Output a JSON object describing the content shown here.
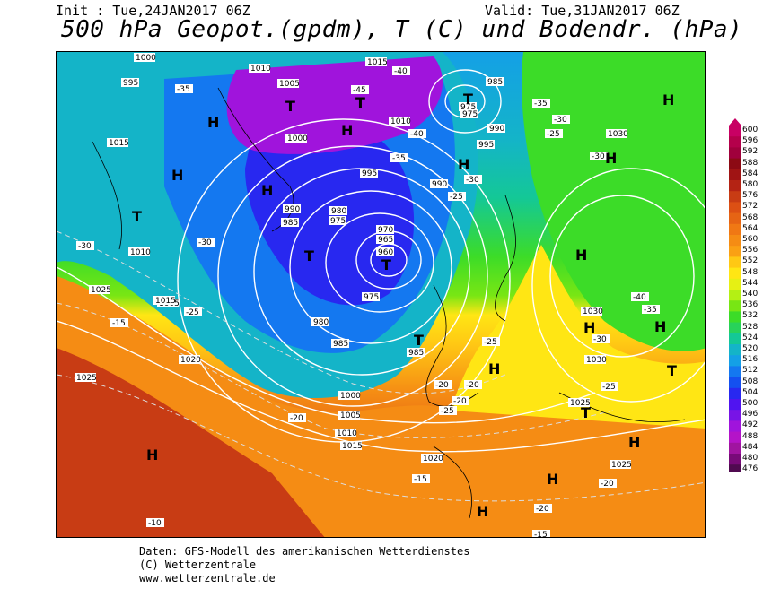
{
  "header": {
    "init": "Init : Tue,24JAN2017 06Z",
    "valid": "Valid: Tue,31JAN2017 06Z",
    "title": "500 hPa Geopot.(gpdm), T (C) und Bodendr. (hPa)"
  },
  "legend": {
    "values": [
      600,
      596,
      592,
      588,
      584,
      580,
      576,
      572,
      568,
      564,
      560,
      556,
      552,
      548,
      544,
      540,
      536,
      532,
      528,
      524,
      520,
      516,
      512,
      508,
      504,
      500,
      496,
      492,
      488,
      484,
      480,
      476
    ],
    "colors": [
      "#c80064",
      "#b4004b",
      "#a0003c",
      "#8c0a14",
      "#a01414",
      "#b42314",
      "#c83c14",
      "#dc5014",
      "#e66414",
      "#f07814",
      "#f58c14",
      "#faa014",
      "#ffc814",
      "#ffe614",
      "#e6f014",
      "#b4f014",
      "#78e614",
      "#3cdc28",
      "#28d25a",
      "#14c896",
      "#14b4c8",
      "#14a0e6",
      "#1478f0",
      "#1450f0",
      "#2828f0",
      "#5014f0",
      "#7814e6",
      "#a014dc",
      "#b414c8",
      "#a014a0",
      "#780a78",
      "#500a50"
    ]
  },
  "map_labels": {
    "pressure": [
      "1000",
      "995",
      "1010",
      "1005",
      "1015",
      "1010",
      "1015",
      "985",
      "975",
      "970",
      "965",
      "960",
      "980",
      "990",
      "985",
      "975",
      "980",
      "985",
      "990",
      "995",
      "1000",
      "1005",
      "1010",
      "1015",
      "1020",
      "1025",
      "1030",
      "1030",
      "1025",
      "1025",
      "1020",
      "1010",
      "1005",
      "990",
      "995",
      "985",
      "975",
      "975",
      "1000",
      "1030",
      "1025",
      "1015"
    ],
    "temperature": [
      "-30",
      "-30",
      "-35",
      "-40",
      "-45",
      "-35",
      "-40",
      "-30",
      "-25",
      "-35",
      "-30",
      "-25",
      "-20",
      "-15",
      "-20",
      "-25",
      "-20",
      "-15",
      "-10",
      "-20",
      "-25",
      "-30",
      "-35",
      "-40",
      "-25",
      "-20",
      "-30",
      "-15",
      "-20",
      "-25"
    ],
    "highs": [
      "H",
      "H",
      "H",
      "H",
      "H",
      "H",
      "H",
      "H",
      "H",
      "H",
      "H",
      "H",
      "H",
      "H",
      "H"
    ],
    "lows": [
      "T",
      "T",
      "T",
      "T",
      "T",
      "T",
      "T",
      "T",
      "T"
    ]
  },
  "footer": {
    "line1": "Daten: GFS-Modell des amerikanischen Wetterdienstes",
    "line2": "(C) Wetterzentrale",
    "line3": "www.wetterzentrale.de"
  }
}
